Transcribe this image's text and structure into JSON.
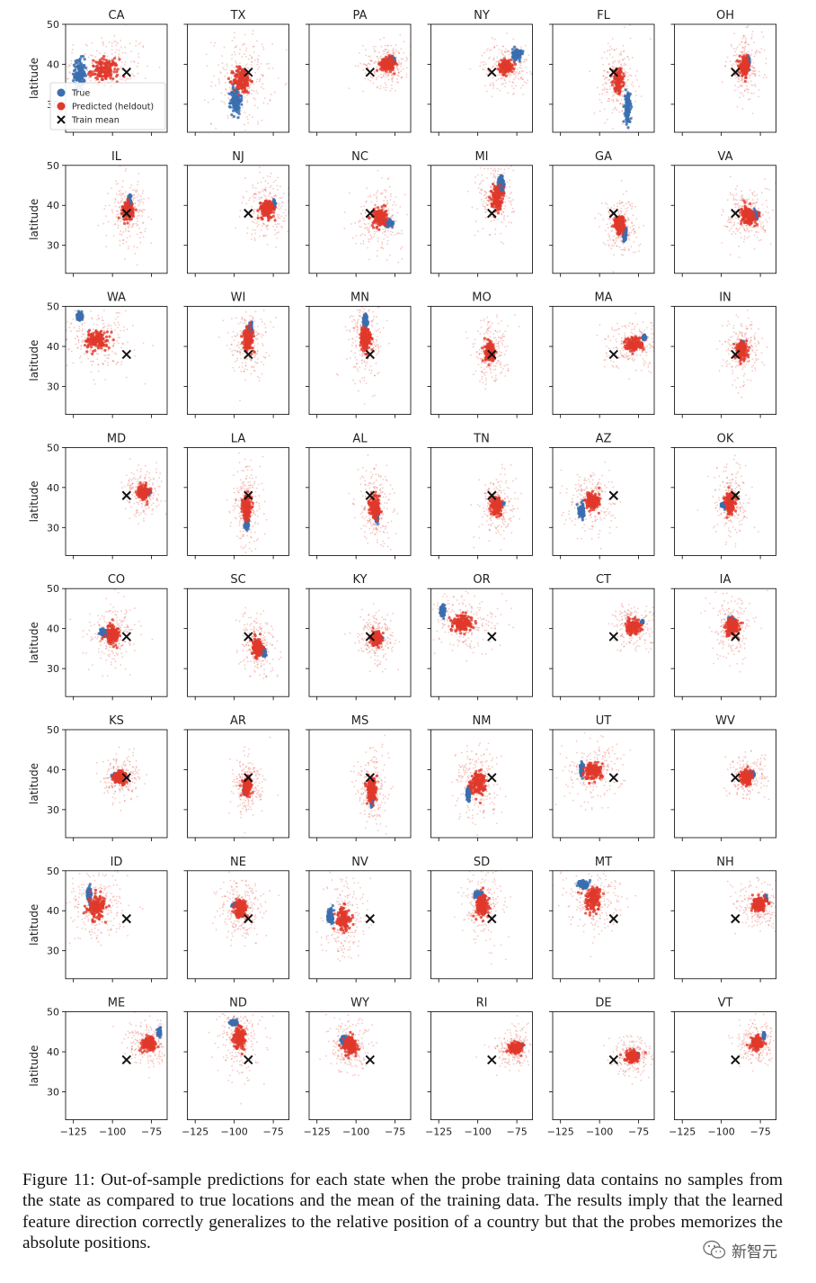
{
  "chart_data": {
    "type": "scatter",
    "layout": "small-multiples",
    "rows": 8,
    "cols": 6,
    "xlim": [
      -130,
      -65
    ],
    "ylim": [
      23,
      50
    ],
    "xticks": [
      -125,
      -100,
      -75
    ],
    "yticks": [
      30,
      40,
      50
    ],
    "ylabel": "latitude",
    "xlabel": "",
    "legend": {
      "placement": "inside first panel, lower-left",
      "entries": [
        {
          "label": "True",
          "color": "#3a6fb0",
          "marker": "circle"
        },
        {
          "label": "Predicted (heldout)",
          "color": "#e0382a",
          "marker": "circle"
        },
        {
          "label": "Train mean",
          "color": "#111111",
          "marker": "x"
        }
      ]
    },
    "train_mean": [
      -91,
      38
    ],
    "panels": [
      {
        "state": "CA",
        "true": [
          -121,
          37.5
        ],
        "true_sx": 3,
        "true_sy": 3.5,
        "pred": [
          -105,
          38.5
        ],
        "pred_sx": 8,
        "pred_sy": 2.5
      },
      {
        "state": "TX",
        "true": [
          -99,
          31
        ],
        "true_sx": 3,
        "true_sy": 3,
        "pred": [
          -95,
          36
        ],
        "pred_sx": 5,
        "pred_sy": 3
      },
      {
        "state": "PA",
        "true": [
          -77.5,
          41
        ],
        "true_sx": 2,
        "true_sy": 0.7,
        "pred": [
          -80,
          40
        ],
        "pred_sx": 4,
        "pred_sy": 1.5
      },
      {
        "state": "NY",
        "true": [
          -75,
          42.5
        ],
        "true_sx": 2.5,
        "true_sy": 1.2,
        "pred": [
          -82,
          39.5
        ],
        "pred_sx": 4,
        "pred_sy": 1.5
      },
      {
        "state": "FL",
        "true": [
          -82,
          29
        ],
        "true_sx": 1.5,
        "true_sy": 3.5,
        "pred": [
          -88,
          36
        ],
        "pred_sx": 3,
        "pred_sy": 2.5
      },
      {
        "state": "OH",
        "true": [
          -83,
          40.5
        ],
        "true_sx": 1.2,
        "true_sy": 1,
        "pred": [
          -85,
          39.5
        ],
        "pred_sx": 3,
        "pred_sy": 2
      },
      {
        "state": "IL",
        "true": [
          -89,
          40.5
        ],
        "true_sx": 0.8,
        "true_sy": 2,
        "pred": [
          -90,
          38.5
        ],
        "pred_sx": 3,
        "pred_sy": 2
      },
      {
        "state": "NJ",
        "true": [
          -74.5,
          40.3
        ],
        "true_sx": 0.6,
        "true_sy": 0.8,
        "pred": [
          -79,
          39
        ],
        "pred_sx": 4,
        "pred_sy": 2
      },
      {
        "state": "NC",
        "true": [
          -79.5,
          35.5
        ],
        "true_sx": 2.5,
        "true_sy": 0.6,
        "pred": [
          -85,
          37
        ],
        "pred_sx": 4,
        "pred_sy": 2
      },
      {
        "state": "MI",
        "true": [
          -85,
          45
        ],
        "true_sx": 1.5,
        "true_sy": 2,
        "pred": [
          -88,
          42
        ],
        "pred_sx": 3,
        "pred_sy": 2.5
      },
      {
        "state": "GA",
        "true": [
          -84,
          33
        ],
        "true_sx": 1,
        "true_sy": 1.3,
        "pred": [
          -87,
          35
        ],
        "pred_sx": 3,
        "pred_sy": 2
      },
      {
        "state": "VA",
        "true": [
          -78.5,
          37.5
        ],
        "true_sx": 2,
        "true_sy": 0.8,
        "pred": [
          -83,
          37.5
        ],
        "pred_sx": 4,
        "pred_sy": 2
      },
      {
        "state": "WA",
        "true": [
          -121,
          47.5
        ],
        "true_sx": 1.5,
        "true_sy": 0.8,
        "pred": [
          -110,
          41.5
        ],
        "pred_sx": 6,
        "pred_sy": 2
      },
      {
        "state": "WI",
        "true": [
          -89.5,
          44.5
        ],
        "true_sx": 1,
        "true_sy": 1.2,
        "pred": [
          -91,
          42
        ],
        "pred_sx": 3,
        "pred_sy": 2.5
      },
      {
        "state": "MN",
        "true": [
          -94,
          46
        ],
        "true_sx": 1,
        "true_sy": 1.8,
        "pred": [
          -94,
          42
        ],
        "pred_sx": 3,
        "pred_sy": 3
      },
      {
        "state": "MO",
        "true": [
          -92,
          38.5
        ],
        "true_sx": 1.2,
        "true_sy": 1,
        "pred": [
          -92,
          38.5
        ],
        "pred_sx": 3,
        "pred_sy": 2
      },
      {
        "state": "MA",
        "true": [
          -71.5,
          42.2
        ],
        "true_sx": 0.8,
        "true_sy": 0.4,
        "pred": [
          -78,
          40.5
        ],
        "pred_sx": 5,
        "pred_sy": 1.5
      },
      {
        "state": "IN",
        "true": [
          -86.3,
          40
        ],
        "true_sx": 0.7,
        "true_sy": 1,
        "pred": [
          -87,
          39
        ],
        "pred_sx": 3,
        "pred_sy": 2
      },
      {
        "state": "MD",
        "true": [
          -77,
          39
        ],
        "true_sx": 1,
        "true_sy": 0.4,
        "pred": [
          -80,
          38.8
        ],
        "pred_sx": 3,
        "pred_sy": 1.5
      },
      {
        "state": "LA",
        "true": [
          -92,
          30.8
        ],
        "true_sx": 1,
        "true_sy": 0.8,
        "pred": [
          -92,
          35
        ],
        "pred_sx": 2.5,
        "pred_sy": 3
      },
      {
        "state": "AL",
        "true": [
          -86.7,
          33
        ],
        "true_sx": 0.8,
        "true_sy": 1.2,
        "pred": [
          -88,
          35
        ],
        "pred_sx": 3,
        "pred_sy": 2.5
      },
      {
        "state": "TN",
        "true": [
          -86,
          35.8
        ],
        "true_sx": 2,
        "true_sy": 0.5,
        "pred": [
          -88,
          35.5
        ],
        "pred_sx": 3,
        "pred_sy": 2
      },
      {
        "state": "AZ",
        "true": [
          -111.5,
          34
        ],
        "true_sx": 1.5,
        "true_sy": 1.5,
        "pred": [
          -105,
          36.5
        ],
        "pred_sx": 4,
        "pred_sy": 2
      },
      {
        "state": "OK",
        "true": [
          -97.5,
          35.5
        ],
        "true_sx": 2,
        "true_sy": 0.6,
        "pred": [
          -94,
          36
        ],
        "pred_sx": 3,
        "pred_sy": 2.5
      },
      {
        "state": "CO",
        "true": [
          -105.5,
          39
        ],
        "true_sx": 2,
        "true_sy": 0.8,
        "pred": [
          -100,
          38.5
        ],
        "pred_sx": 4,
        "pred_sy": 2
      },
      {
        "state": "SC",
        "true": [
          -81,
          34
        ],
        "true_sx": 1,
        "true_sy": 0.8,
        "pred": [
          -85,
          35.5
        ],
        "pred_sx": 3,
        "pred_sy": 2
      },
      {
        "state": "KY",
        "true": [
          -85,
          37.5
        ],
        "true_sx": 1.5,
        "true_sy": 0.5,
        "pred": [
          -87,
          37.5
        ],
        "pred_sx": 3,
        "pred_sy": 1.5
      },
      {
        "state": "OR",
        "true": [
          -122.5,
          44.5
        ],
        "true_sx": 1.2,
        "true_sy": 1,
        "pred": [
          -110,
          41.5
        ],
        "pred_sx": 6,
        "pred_sy": 2
      },
      {
        "state": "CT",
        "true": [
          -72.7,
          41.6
        ],
        "true_sx": 0.6,
        "true_sy": 0.3,
        "pred": [
          -78,
          40.5
        ],
        "pred_sx": 4,
        "pred_sy": 1.5
      },
      {
        "state": "IA",
        "true": [
          -93.5,
          42
        ],
        "true_sx": 1.5,
        "true_sy": 0.6,
        "pred": [
          -93,
          40.5
        ],
        "pred_sx": 3.5,
        "pred_sy": 2
      },
      {
        "state": "KS",
        "true": [
          -97.5,
          38.5
        ],
        "true_sx": 2,
        "true_sy": 0.4,
        "pred": [
          -95,
          38
        ],
        "pred_sx": 3.5,
        "pred_sy": 1.5
      },
      {
        "state": "AR",
        "true": [
          -92.5,
          35
        ],
        "true_sx": 1,
        "true_sy": 0.8,
        "pred": [
          -92,
          36
        ],
        "pred_sx": 2.5,
        "pred_sy": 2
      },
      {
        "state": "MS",
        "true": [
          -89.8,
          32.5
        ],
        "true_sx": 0.6,
        "true_sy": 1.5,
        "pred": [
          -90,
          35
        ],
        "pred_sx": 2.5,
        "pred_sy": 2.5
      },
      {
        "state": "NM",
        "true": [
          -106,
          34
        ],
        "true_sx": 1,
        "true_sy": 1.5,
        "pred": [
          -100,
          36.5
        ],
        "pred_sx": 4,
        "pred_sy": 2.5
      },
      {
        "state": "UT",
        "true": [
          -111.5,
          40
        ],
        "true_sx": 0.8,
        "true_sy": 1.2,
        "pred": [
          -104,
          39.5
        ],
        "pred_sx": 5,
        "pred_sy": 2
      },
      {
        "state": "WV",
        "true": [
          -80.5,
          38.8
        ],
        "true_sx": 1.2,
        "true_sy": 0.6,
        "pred": [
          -84,
          38
        ],
        "pred_sx": 3,
        "pred_sy": 1.5
      },
      {
        "state": "ID",
        "true": [
          -115,
          44
        ],
        "true_sx": 1.2,
        "true_sy": 1.5,
        "pred": [
          -110,
          41
        ],
        "pred_sx": 5,
        "pred_sy": 2.5
      },
      {
        "state": "NE",
        "true": [
          -98.5,
          41.5
        ],
        "true_sx": 2,
        "true_sy": 0.4,
        "pred": [
          -96,
          40.5
        ],
        "pred_sx": 3.5,
        "pred_sy": 2
      },
      {
        "state": "NV",
        "true": [
          -116.5,
          38.5
        ],
        "true_sx": 1.5,
        "true_sy": 1.5,
        "pred": [
          -108,
          38
        ],
        "pred_sx": 4,
        "pred_sy": 2.5
      },
      {
        "state": "SD",
        "true": [
          -99.5,
          44
        ],
        "true_sx": 2,
        "true_sy": 0.6,
        "pred": [
          -97,
          41.5
        ],
        "pred_sx": 3.5,
        "pred_sy": 2.5
      },
      {
        "state": "MT",
        "true": [
          -110,
          46.5
        ],
        "true_sx": 2.5,
        "true_sy": 0.8,
        "pred": [
          -104,
          43
        ],
        "pred_sx": 4.5,
        "pred_sy": 2.5
      },
      {
        "state": "NH",
        "true": [
          -71.5,
          43.2
        ],
        "true_sx": 0.5,
        "true_sy": 0.6,
        "pred": [
          -76,
          41.5
        ],
        "pred_sx": 4,
        "pred_sy": 1.5
      },
      {
        "state": "ME",
        "true": [
          -70,
          44.8
        ],
        "true_sx": 0.8,
        "true_sy": 0.8,
        "pred": [
          -77,
          42
        ],
        "pred_sx": 4,
        "pred_sy": 1.5
      },
      {
        "state": "ND",
        "true": [
          -100,
          47.2
        ],
        "true_sx": 2,
        "true_sy": 0.5,
        "pred": [
          -97,
          43.5
        ],
        "pred_sx": 3.5,
        "pred_sy": 2.5
      },
      {
        "state": "WY",
        "true": [
          -107.5,
          43
        ],
        "true_sx": 1.5,
        "true_sy": 0.8,
        "pred": [
          -104,
          41.5
        ],
        "pred_sx": 3.5,
        "pred_sy": 2
      },
      {
        "state": "RI",
        "true": [
          -71.5,
          41.7
        ],
        "true_sx": 0.3,
        "true_sy": 0.2,
        "pred": [
          -76,
          40.8
        ],
        "pred_sx": 3.5,
        "pred_sy": 1.2
      },
      {
        "state": "DE",
        "true": [
          -75.5,
          39.2
        ],
        "true_sx": 0.4,
        "true_sy": 0.4,
        "pred": [
          -79,
          38.8
        ],
        "pred_sx": 3.5,
        "pred_sy": 1.2
      },
      {
        "state": "VT",
        "true": [
          -72.7,
          44
        ],
        "true_sx": 0.4,
        "true_sy": 0.6,
        "pred": [
          -77,
          42.2
        ],
        "pred_sx": 3.5,
        "pred_sy": 1.5
      }
    ]
  },
  "caption": "Figure 11: Out-of-sample predictions for each state when the probe training data contains no samples from the state as compared to true locations and the mean of the training data.  The results imply that the learned feature direction correctly generalizes to the relative position of a country but that the probes memorizes the absolute positions.",
  "watermark": {
    "text": "新智元",
    "icon": "wechat-icon"
  },
  "colors": {
    "true": "#3a6fb0",
    "pred": "#e0382a",
    "mean": "#111111",
    "axis": "#000000"
  }
}
